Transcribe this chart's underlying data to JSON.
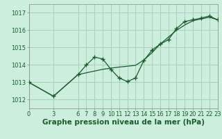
{
  "title": "Graphe pression niveau de la mer (hPa)",
  "background_color": "#cceedd",
  "grid_color": "#aaccbb",
  "line_color": "#1a5c2a",
  "xlim": [
    0,
    23
  ],
  "ylim": [
    1011.5,
    1017.5
  ],
  "xticks": [
    0,
    3,
    6,
    7,
    8,
    9,
    10,
    11,
    12,
    13,
    14,
    15,
    16,
    17,
    18,
    19,
    20,
    21,
    22,
    23
  ],
  "yticks": [
    1012,
    1013,
    1014,
    1015,
    1016,
    1017
  ],
  "series1_x": [
    0,
    3,
    6,
    7,
    8,
    9,
    10,
    11,
    12,
    13,
    14,
    15,
    16,
    17,
    18,
    19,
    20,
    21,
    22,
    23
  ],
  "series1_y": [
    1013.0,
    1012.2,
    1013.45,
    1014.0,
    1014.45,
    1014.35,
    1013.75,
    1013.25,
    1013.05,
    1013.25,
    1014.25,
    1014.85,
    1015.2,
    1015.45,
    1016.1,
    1016.5,
    1016.6,
    1016.7,
    1016.82,
    1016.6
  ],
  "series2_x": [
    0,
    3,
    6,
    7,
    8,
    9,
    10,
    11,
    12,
    13,
    14,
    15,
    16,
    17,
    18,
    19,
    20,
    21,
    22,
    23
  ],
  "series2_y": [
    1013.0,
    1012.2,
    1013.45,
    1013.55,
    1013.65,
    1013.75,
    1013.82,
    1013.88,
    1013.93,
    1013.98,
    1014.28,
    1014.7,
    1015.2,
    1015.6,
    1016.0,
    1016.3,
    1016.55,
    1016.65,
    1016.75,
    1016.6
  ],
  "title_fontsize": 7.5,
  "tick_fontsize": 6.0
}
